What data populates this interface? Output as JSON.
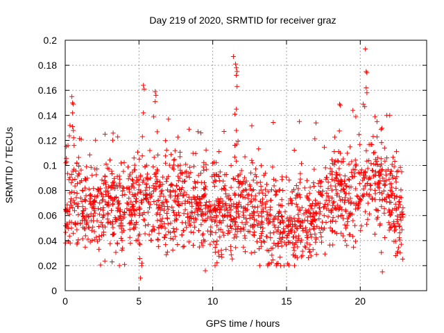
{
  "chart_data": {
    "type": "scatter",
    "title": "Day 219 of 2020, SRMTID for receiver graz",
    "xlabel": "GPS time / hours",
    "ylabel": "SRMTID / TECUs",
    "xlim": [
      0,
      24.5
    ],
    "ylim": [
      0,
      0.2
    ],
    "xticks": [
      0,
      5,
      10,
      15,
      20
    ],
    "xtick_labels": [
      "0",
      "5",
      "10",
      "15",
      "20"
    ],
    "yticks": [
      0,
      0.02,
      0.04,
      0.06,
      0.08,
      0.1,
      0.12,
      0.14,
      0.16,
      0.18,
      0.2
    ],
    "ytick_labels": [
      "0",
      "0.02",
      "0.04",
      "0.06",
      "0.08",
      "0.1",
      "0.12",
      "0.14",
      "0.16",
      "0.18",
      "0.2"
    ],
    "grid": true,
    "marker": "+",
    "color": "#ff0000",
    "series": [
      {
        "name": "SRMTID",
        "x_range": [
          0,
          22.9
        ],
        "n_points": 1800,
        "seed": 219,
        "baseline_profile": [
          {
            "x": 0,
            "y": 0.07
          },
          {
            "x": 2,
            "y": 0.068
          },
          {
            "x": 4,
            "y": 0.062
          },
          {
            "x": 5.5,
            "y": 0.075
          },
          {
            "x": 7,
            "y": 0.07
          },
          {
            "x": 9,
            "y": 0.07
          },
          {
            "x": 10.5,
            "y": 0.062
          },
          {
            "x": 12,
            "y": 0.07
          },
          {
            "x": 14,
            "y": 0.055
          },
          {
            "x": 15,
            "y": 0.055
          },
          {
            "x": 17,
            "y": 0.062
          },
          {
            "x": 18.5,
            "y": 0.07
          },
          {
            "x": 20,
            "y": 0.085
          },
          {
            "x": 21.5,
            "y": 0.085
          },
          {
            "x": 22.9,
            "y": 0.06
          }
        ],
        "spread": 0.018,
        "outliers": [
          {
            "x": 0.45,
            "y": 0.155
          },
          {
            "x": 0.5,
            "y": 0.15
          },
          {
            "x": 0.55,
            "y": 0.149
          },
          {
            "x": 0.5,
            "y": 0.142
          },
          {
            "x": 0.5,
            "y": 0.131
          },
          {
            "x": 0.55,
            "y": 0.128
          },
          {
            "x": 0.6,
            "y": 0.116
          },
          {
            "x": 2.7,
            "y": 0.125
          },
          {
            "x": 5.3,
            "y": 0.164
          },
          {
            "x": 5.35,
            "y": 0.161
          },
          {
            "x": 5.3,
            "y": 0.142
          },
          {
            "x": 5.1,
            "y": 0.01
          },
          {
            "x": 5.2,
            "y": 0.022
          },
          {
            "x": 6.1,
            "y": 0.159
          },
          {
            "x": 6.15,
            "y": 0.156
          },
          {
            "x": 6.1,
            "y": 0.151
          },
          {
            "x": 6.0,
            "y": 0.139
          },
          {
            "x": 7.0,
            "y": 0.137
          },
          {
            "x": 9.0,
            "y": 0.127
          },
          {
            "x": 9.2,
            "y": 0.126
          },
          {
            "x": 9.5,
            "y": 0.016
          },
          {
            "x": 10.9,
            "y": 0.033
          },
          {
            "x": 11.4,
            "y": 0.187
          },
          {
            "x": 11.55,
            "y": 0.181
          },
          {
            "x": 11.6,
            "y": 0.178
          },
          {
            "x": 11.65,
            "y": 0.175
          },
          {
            "x": 11.6,
            "y": 0.172
          },
          {
            "x": 11.65,
            "y": 0.163
          },
          {
            "x": 11.6,
            "y": 0.145
          },
          {
            "x": 11.5,
            "y": 0.141
          },
          {
            "x": 11.6,
            "y": 0.128
          },
          {
            "x": 11.5,
            "y": 0.116
          },
          {
            "x": 17.0,
            "y": 0.134
          },
          {
            "x": 18.6,
            "y": 0.149
          },
          {
            "x": 18.65,
            "y": 0.148
          },
          {
            "x": 19.5,
            "y": 0.144
          },
          {
            "x": 19.7,
            "y": 0.139
          },
          {
            "x": 20.2,
            "y": 0.149
          },
          {
            "x": 20.3,
            "y": 0.147
          },
          {
            "x": 20.35,
            "y": 0.193
          },
          {
            "x": 20.4,
            "y": 0.175
          },
          {
            "x": 20.45,
            "y": 0.174
          },
          {
            "x": 20.4,
            "y": 0.162
          },
          {
            "x": 20.45,
            "y": 0.158
          },
          {
            "x": 21.0,
            "y": 0.139
          },
          {
            "x": 21.8,
            "y": 0.14
          },
          {
            "x": 22.0,
            "y": 0.14
          },
          {
            "x": 21.5,
            "y": 0.015
          },
          {
            "x": 22.4,
            "y": 0.028
          },
          {
            "x": 22.5,
            "y": 0.03
          }
        ]
      }
    ]
  }
}
